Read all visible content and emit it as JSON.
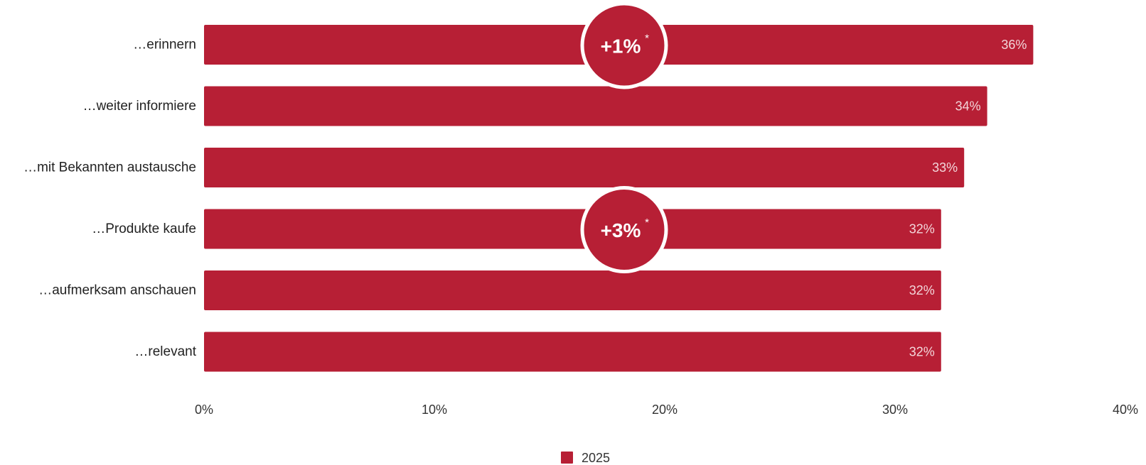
{
  "chart_data": {
    "type": "bar",
    "orientation": "horizontal",
    "categories": [
      "…erinnern",
      "…weiter informiere",
      "…mit Bekannten austausche",
      "…Produkte kaufe",
      "…aufmerksam anschauen",
      "…relevant"
    ],
    "series": [
      {
        "name": "2025",
        "values": [
          36,
          34,
          33,
          32,
          32,
          32
        ],
        "value_labels": [
          "36%",
          "34%",
          "33%",
          "32%",
          "32%",
          "32%"
        ]
      }
    ],
    "xlim": [
      0,
      40
    ],
    "x_ticks": [
      0,
      10,
      20,
      30,
      40
    ],
    "x_tick_labels": [
      "0%",
      "10%",
      "20%",
      "30%",
      "40%"
    ],
    "grid": false,
    "legend_position": "bottom-center",
    "colors": {
      "bar": "#b71f35",
      "badge": "#b71f35",
      "badge_outline": "#ffffff"
    },
    "annotations": [
      {
        "category_index": 0,
        "text": "+1%",
        "marker": "*"
      },
      {
        "category_index": 3,
        "text": "+3%",
        "marker": "*"
      }
    ]
  }
}
